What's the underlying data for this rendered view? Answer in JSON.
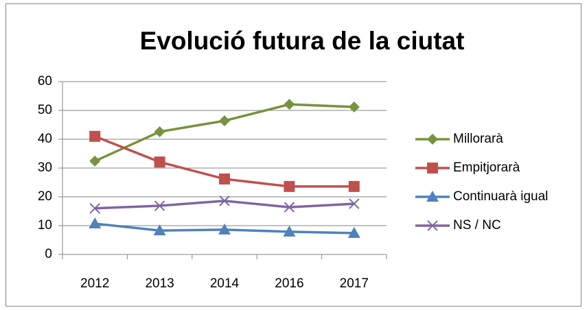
{
  "chart_data": {
    "type": "line",
    "title": "Evolució futura de la ciutat",
    "categories": [
      "2012",
      "2013",
      "2014",
      "2016",
      "2017"
    ],
    "series": [
      {
        "name": "Millorarà",
        "color": "#77933c",
        "marker": "diamond",
        "values": [
          32.4,
          42.6,
          46.4,
          52.1,
          51.2
        ]
      },
      {
        "name": "Empitjorarà",
        "color": "#c0504d",
        "marker": "square",
        "values": [
          41.0,
          32.1,
          26.2,
          23.6,
          23.6
        ]
      },
      {
        "name": "Continuarà igual",
        "color": "#4f81bd",
        "marker": "triangle",
        "values": [
          10.7,
          8.3,
          8.6,
          7.9,
          7.4
        ]
      },
      {
        "name": "NS / NC",
        "color": "#8064a2",
        "marker": "x",
        "values": [
          16.0,
          16.9,
          18.6,
          16.4,
          17.6
        ]
      }
    ],
    "ylim": [
      0,
      60
    ],
    "yticks": [
      0,
      10,
      20,
      30,
      40,
      50,
      60
    ],
    "grid": true,
    "legend": "right"
  }
}
